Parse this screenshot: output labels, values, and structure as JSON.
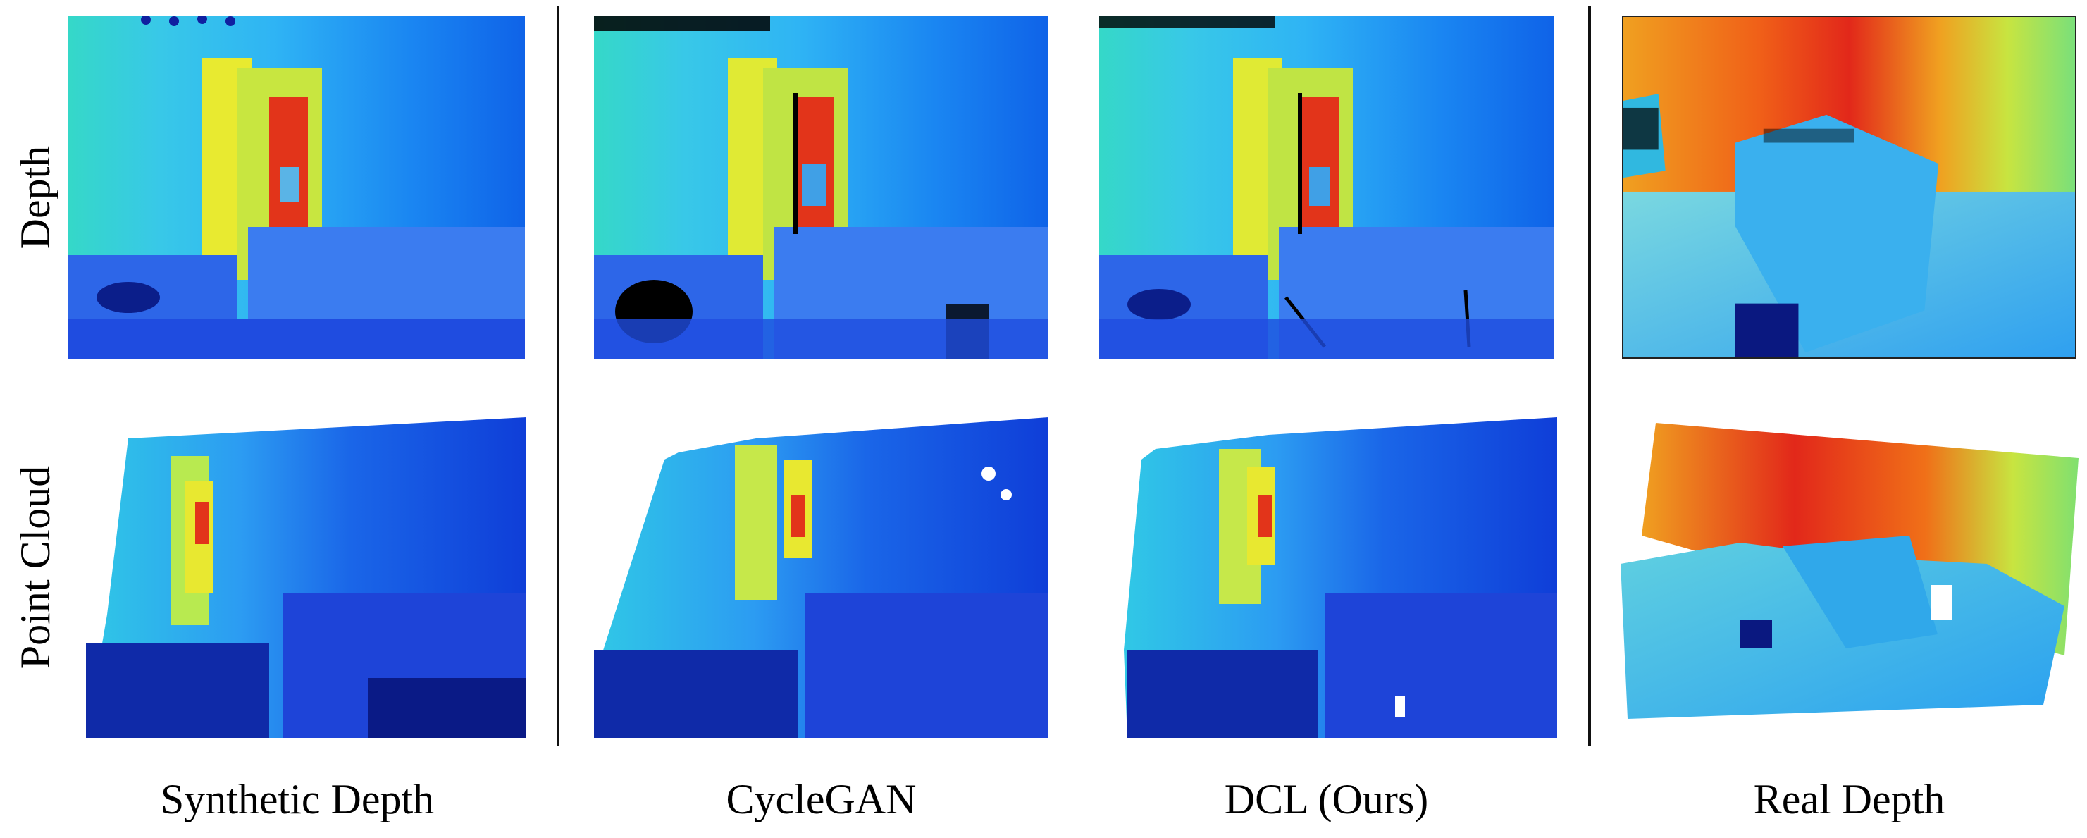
{
  "row_labels": {
    "depth": "Depth",
    "point_cloud": "Point Cloud"
  },
  "columns": [
    {
      "label": "Synthetic Depth"
    },
    {
      "label": "CycleGAN"
    },
    {
      "label": "DCL (Ours)"
    },
    {
      "label": "Real Depth"
    }
  ],
  "colormap": "jet"
}
